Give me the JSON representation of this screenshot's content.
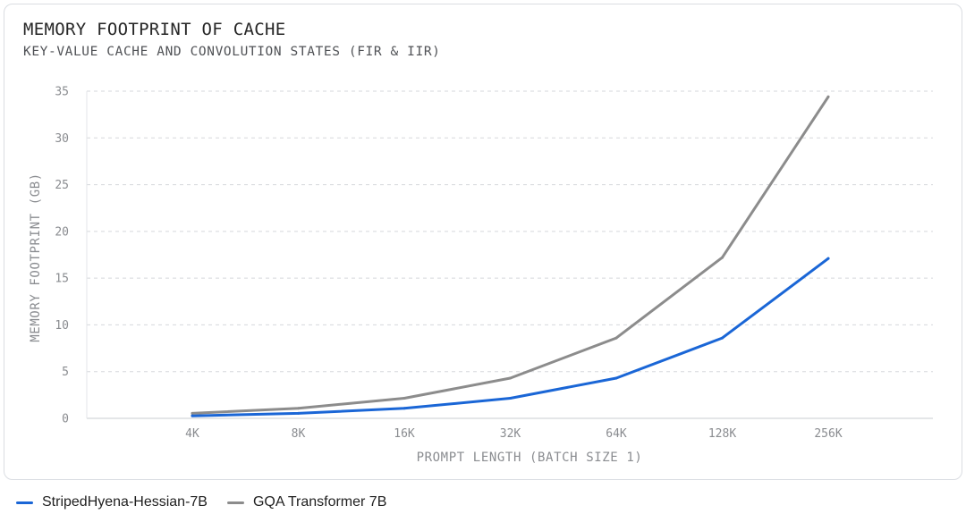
{
  "chart_data": {
    "type": "line",
    "title": "MEMORY FOOTPRINT OF CACHE",
    "subtitle": "KEY-VALUE CACHE AND CONVOLUTION STATES (FIR & IIR)",
    "xlabel": "PROMPT LENGTH (BATCH SIZE 1)",
    "ylabel": "MEMORY FOOTPRINT (GB)",
    "categories": [
      "4K",
      "8K",
      "16K",
      "32K",
      "64K",
      "128K",
      "256K"
    ],
    "ylim": [
      0,
      35
    ],
    "yticks": [
      0,
      5,
      10,
      15,
      20,
      25,
      30,
      35
    ],
    "grid": true,
    "legend_position": "bottom-left",
    "series": [
      {
        "name": "StripedHyena-Hessian-7B",
        "color": "#1a66d6",
        "values": [
          0.27,
          0.54,
          1.07,
          2.15,
          4.3,
          8.6,
          17.1
        ]
      },
      {
        "name": "GQA Transformer 7B",
        "color": "#8c8c8c",
        "values": [
          0.54,
          1.07,
          2.15,
          4.3,
          8.6,
          17.2,
          34.4
        ]
      }
    ]
  }
}
